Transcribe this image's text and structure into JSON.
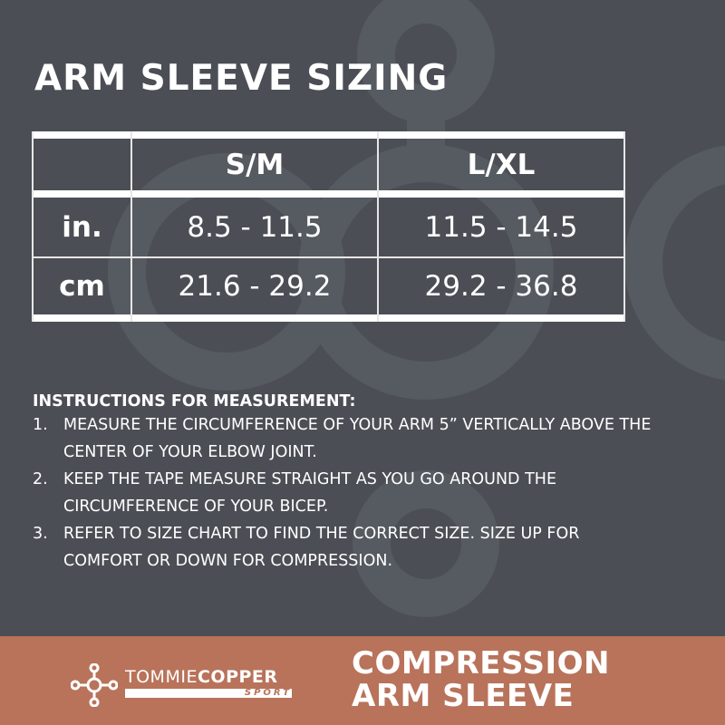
{
  "title": "ARM SLEEVE SIZING",
  "table": {
    "headers": [
      "",
      "S/M",
      "L/XL"
    ],
    "rows": [
      {
        "unit": "in.",
        "values": [
          "8.5 - 11.5",
          "11.5 - 14.5"
        ]
      },
      {
        "unit": "cm",
        "values": [
          "21.6 - 29.2",
          "29.2 - 36.8"
        ]
      }
    ]
  },
  "instructions": {
    "heading": "INSTRUCTIONS FOR MEASUREMENT:",
    "steps": [
      {
        "num": "1.",
        "text": "MEASURE THE CIRCUMFERENCE OF YOUR ARM 5” VERTICALLY ABOVE THE CENTER OF YOUR ELBOW JOINT."
      },
      {
        "num": "2.",
        "text": "KEEP THE TAPE MEASURE STRAIGHT AS YOU GO AROUND THE CIRCUMFERENCE OF YOUR BICEP."
      },
      {
        "num": "3.",
        "text": "REFER TO SIZE CHART TO FIND THE CORRECT SIZE. SIZE UP FOR COMFORT OR DOWN FOR COMPRESSION."
      }
    ]
  },
  "footer": {
    "brand_light": "TOMMIE",
    "brand_bold": "COPPER",
    "brand_sub": "SPORT",
    "product_line1": "COMPRESSION",
    "product_line2": "ARM SLEEVE"
  },
  "colors": {
    "background": "#4b4e55",
    "pattern": "#565a61",
    "footer": "#b8735a",
    "text": "#ffffff"
  }
}
